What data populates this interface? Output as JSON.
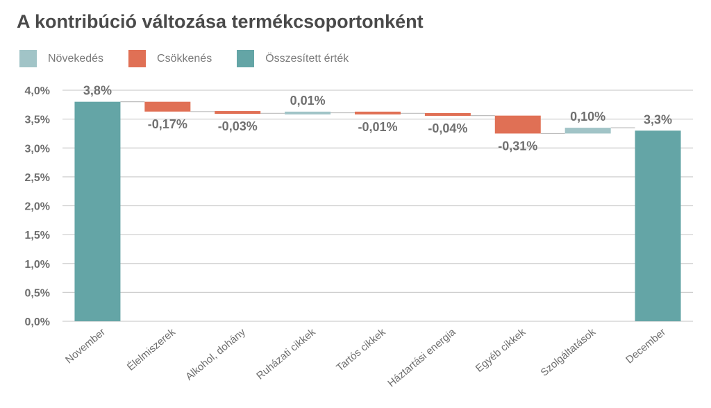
{
  "chart_data": {
    "type": "bar",
    "subtype": "waterfall",
    "title": "A kontribúció változása termékcsoportonként",
    "legend": [
      {
        "key": "increase",
        "label": "Növekedés",
        "color": "#a1c4c7"
      },
      {
        "key": "decrease",
        "label": "Csökkenés",
        "color": "#e07055"
      },
      {
        "key": "total",
        "label": "Összesített érték",
        "color": "#64a5a6"
      }
    ],
    "legend_position": "top-left",
    "categories": [
      "November",
      "Élelmiszerek",
      "Alkohol, dohány",
      "Ruházati cikkek",
      "Tartós cikkek",
      "Háztartási energia",
      "Egyéb cikkek",
      "Szolgáltatások",
      "December"
    ],
    "values": [
      3.8,
      -0.17,
      -0.03,
      0.01,
      -0.01,
      -0.04,
      -0.31,
      0.1,
      3.3
    ],
    "kinds": [
      "total",
      "decrease",
      "decrease",
      "increase",
      "decrease",
      "decrease",
      "decrease",
      "increase",
      "total"
    ],
    "data_labels": [
      "3,8%",
      "-0,17%",
      "-0,03%",
      "0,01%",
      "-0,01%",
      "-0,04%",
      "-0,31%",
      "0,10%",
      "3,3%"
    ],
    "yticks": [
      "0,0%",
      "0,5%",
      "1,0%",
      "1,5%",
      "2,0%",
      "2,5%",
      "3,0%",
      "3,5%",
      "4,0%"
    ],
    "ylim": [
      0,
      4.0
    ],
    "grid": true
  }
}
